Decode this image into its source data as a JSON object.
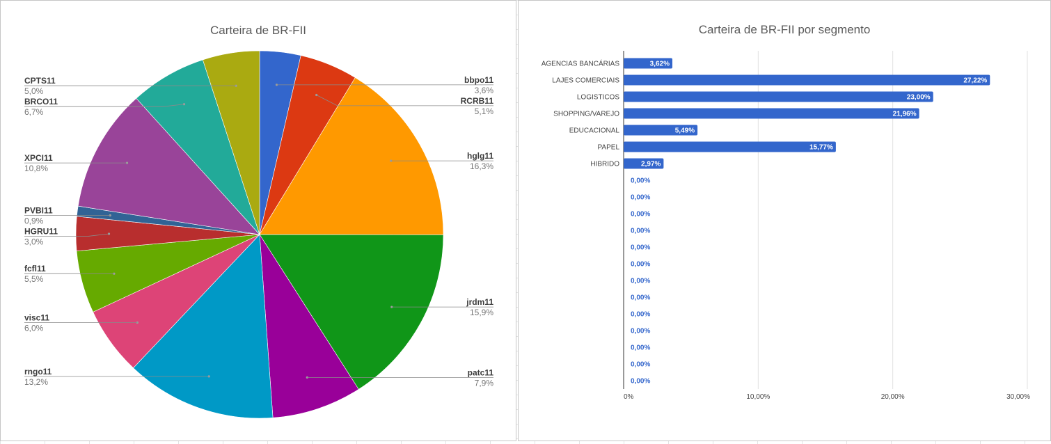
{
  "chart_data": [
    {
      "type": "pie",
      "title": "Carteira de BR-FII",
      "legend": "labels-with-leader-lines",
      "slices": [
        {
          "name": "bbpo11",
          "label": "3,6%",
          "value": 3.6,
          "color": "#3366cc"
        },
        {
          "name": "RCRB11",
          "label": "5,1%",
          "value": 5.1,
          "color": "#dc3912"
        },
        {
          "name": "hglg11",
          "label": "16,3%",
          "value": 16.3,
          "color": "#ff9900"
        },
        {
          "name": "jrdm11",
          "label": "15,9%",
          "value": 15.9,
          "color": "#109618"
        },
        {
          "name": "patc11",
          "label": "7,9%",
          "value": 7.9,
          "color": "#990099"
        },
        {
          "name": "rngo11",
          "label": "13,2%",
          "value": 13.2,
          "color": "#0099c6"
        },
        {
          "name": "visc11",
          "label": "6,0%",
          "value": 6.0,
          "color": "#dd4477"
        },
        {
          "name": "fcfl11",
          "label": "5,5%",
          "value": 5.5,
          "color": "#66aa00"
        },
        {
          "name": "HGRU11",
          "label": "3,0%",
          "value": 3.0,
          "color": "#b82e2e"
        },
        {
          "name": "PVBI11",
          "label": "0,9%",
          "value": 0.9,
          "color": "#316395"
        },
        {
          "name": "XPCI11",
          "label": "10,8%",
          "value": 10.8,
          "color": "#994499"
        },
        {
          "name": "BRCO11",
          "label": "6,7%",
          "value": 6.7,
          "color": "#22aa99"
        },
        {
          "name": "CPTS11",
          "label": "5,0%",
          "value": 5.0,
          "color": "#aaaa11"
        }
      ]
    },
    {
      "type": "bar",
      "orientation": "horizontal",
      "title": "Carteira de BR-FII por segmento",
      "bar_color": "#3366cc",
      "grid": true,
      "xlim": [
        0,
        30
      ],
      "x_ticks": [
        {
          "value": 0,
          "label": "0%"
        },
        {
          "value": 10,
          "label": "10,00%"
        },
        {
          "value": 20,
          "label": "20,00%"
        },
        {
          "value": 30,
          "label": "30,00%"
        }
      ],
      "categories": [
        "AGENCIAS BANCÁRIAS",
        "LAJES COMERCIAIS",
        "LOGISTICOS",
        "SHOPPING/VAREJO",
        "EDUCACIONAL",
        "PAPEL",
        "HIBRIDO",
        "",
        "",
        "",
        "",
        "",
        "",
        "",
        "",
        "",
        "",
        "",
        "",
        ""
      ],
      "values": [
        3.62,
        27.22,
        23.0,
        21.96,
        5.49,
        15.77,
        2.97,
        0,
        0,
        0,
        0,
        0,
        0,
        0,
        0,
        0,
        0,
        0,
        0,
        0
      ],
      "labels": [
        "3,62%",
        "27,22%",
        "23,00%",
        "21,96%",
        "5,49%",
        "15,77%",
        "2,97%",
        "0,00%",
        "0,00%",
        "0,00%",
        "0,00%",
        "0,00%",
        "0,00%",
        "0,00%",
        "0,00%",
        "0,00%",
        "0,00%",
        "0,00%",
        "0,00%",
        "0,00%"
      ]
    }
  ]
}
